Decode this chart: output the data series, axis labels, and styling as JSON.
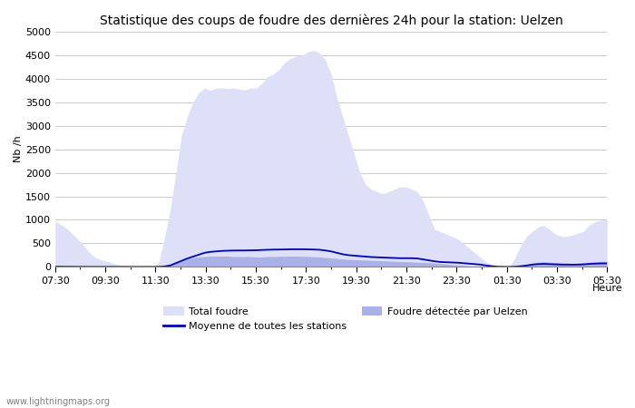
{
  "title": "Statistique des coups de foudre des dernières 24h pour la station: Uelzen",
  "xlabel": "Heure",
  "ylabel": "Nb /h",
  "watermark": "www.lightningmaps.org",
  "ylim": [
    0,
    5000
  ],
  "yticks": [
    0,
    500,
    1000,
    1500,
    2000,
    2500,
    3000,
    3500,
    4000,
    4500,
    5000
  ],
  "xtick_labels": [
    "07:30",
    "09:30",
    "11:30",
    "13:30",
    "15:30",
    "17:30",
    "19:30",
    "21:30",
    "23:30",
    "01:30",
    "03:30",
    "05:30"
  ],
  "legend_labels": [
    "Total foudre",
    "Moyenne de toutes les stations",
    "Foudre détectée par Uelzen"
  ],
  "total_foudre_color": "#dde0f7",
  "uelzen_color": "#aab0e8",
  "moyenne_color": "#0000cc",
  "background_color": "#ffffff",
  "grid_color": "#cccccc",
  "num_points": 97,
  "total_foudre": [
    980,
    900,
    820,
    700,
    580,
    450,
    300,
    200,
    150,
    120,
    80,
    50,
    30,
    20,
    15,
    10,
    8,
    5,
    100,
    600,
    1200,
    2000,
    2800,
    3200,
    3500,
    3700,
    3800,
    3750,
    3800,
    3800,
    3790,
    3800,
    3780,
    3760,
    3800,
    3800,
    3900,
    4050,
    4100,
    4200,
    4350,
    4430,
    4480,
    4500,
    4570,
    4600,
    4550,
    4400,
    4100,
    3600,
    3200,
    2800,
    2400,
    2000,
    1750,
    1650,
    1600,
    1550,
    1600,
    1650,
    1700,
    1700,
    1650,
    1600,
    1400,
    1100,
    800,
    750,
    700,
    650,
    600,
    500,
    400,
    300,
    200,
    100,
    50,
    20,
    10,
    0,
    200,
    450,
    650,
    750,
    850,
    880,
    800,
    700,
    650,
    650,
    680,
    720,
    760,
    900,
    960,
    1000,
    1000
  ],
  "foudre_uelzen": [
    30,
    25,
    20,
    15,
    10,
    8,
    5,
    3,
    2,
    1,
    1,
    1,
    1,
    1,
    1,
    1,
    1,
    1,
    5,
    20,
    50,
    100,
    150,
    180,
    200,
    210,
    220,
    230,
    230,
    230,
    230,
    220,
    220,
    220,
    220,
    210,
    210,
    220,
    220,
    225,
    225,
    230,
    230,
    225,
    220,
    215,
    210,
    200,
    190,
    180,
    170,
    160,
    155,
    150,
    145,
    140,
    135,
    130,
    125,
    120,
    115,
    110,
    105,
    100,
    95,
    90,
    80,
    70,
    60,
    50,
    40,
    30,
    20,
    10,
    5,
    2,
    1,
    1,
    1,
    1,
    5,
    20,
    50,
    80,
    100,
    110,
    100,
    90,
    85,
    80,
    75,
    80,
    90,
    100,
    110,
    120,
    120
  ],
  "moyenne": [
    5,
    4,
    3,
    3,
    2,
    2,
    1,
    1,
    1,
    1,
    1,
    1,
    1,
    1,
    1,
    1,
    1,
    1,
    2,
    10,
    30,
    80,
    130,
    180,
    220,
    260,
    300,
    320,
    330,
    340,
    345,
    348,
    350,
    350,
    352,
    355,
    360,
    365,
    368,
    370,
    372,
    375,
    375,
    375,
    373,
    370,
    365,
    350,
    330,
    300,
    270,
    250,
    240,
    230,
    220,
    210,
    205,
    200,
    195,
    190,
    185,
    185,
    185,
    180,
    160,
    140,
    120,
    105,
    100,
    95,
    90,
    80,
    70,
    60,
    50,
    30,
    15,
    5,
    2,
    1,
    5,
    15,
    30,
    50,
    60,
    65,
    60,
    55,
    50,
    50,
    48,
    50,
    55,
    65,
    70,
    75,
    75
  ]
}
